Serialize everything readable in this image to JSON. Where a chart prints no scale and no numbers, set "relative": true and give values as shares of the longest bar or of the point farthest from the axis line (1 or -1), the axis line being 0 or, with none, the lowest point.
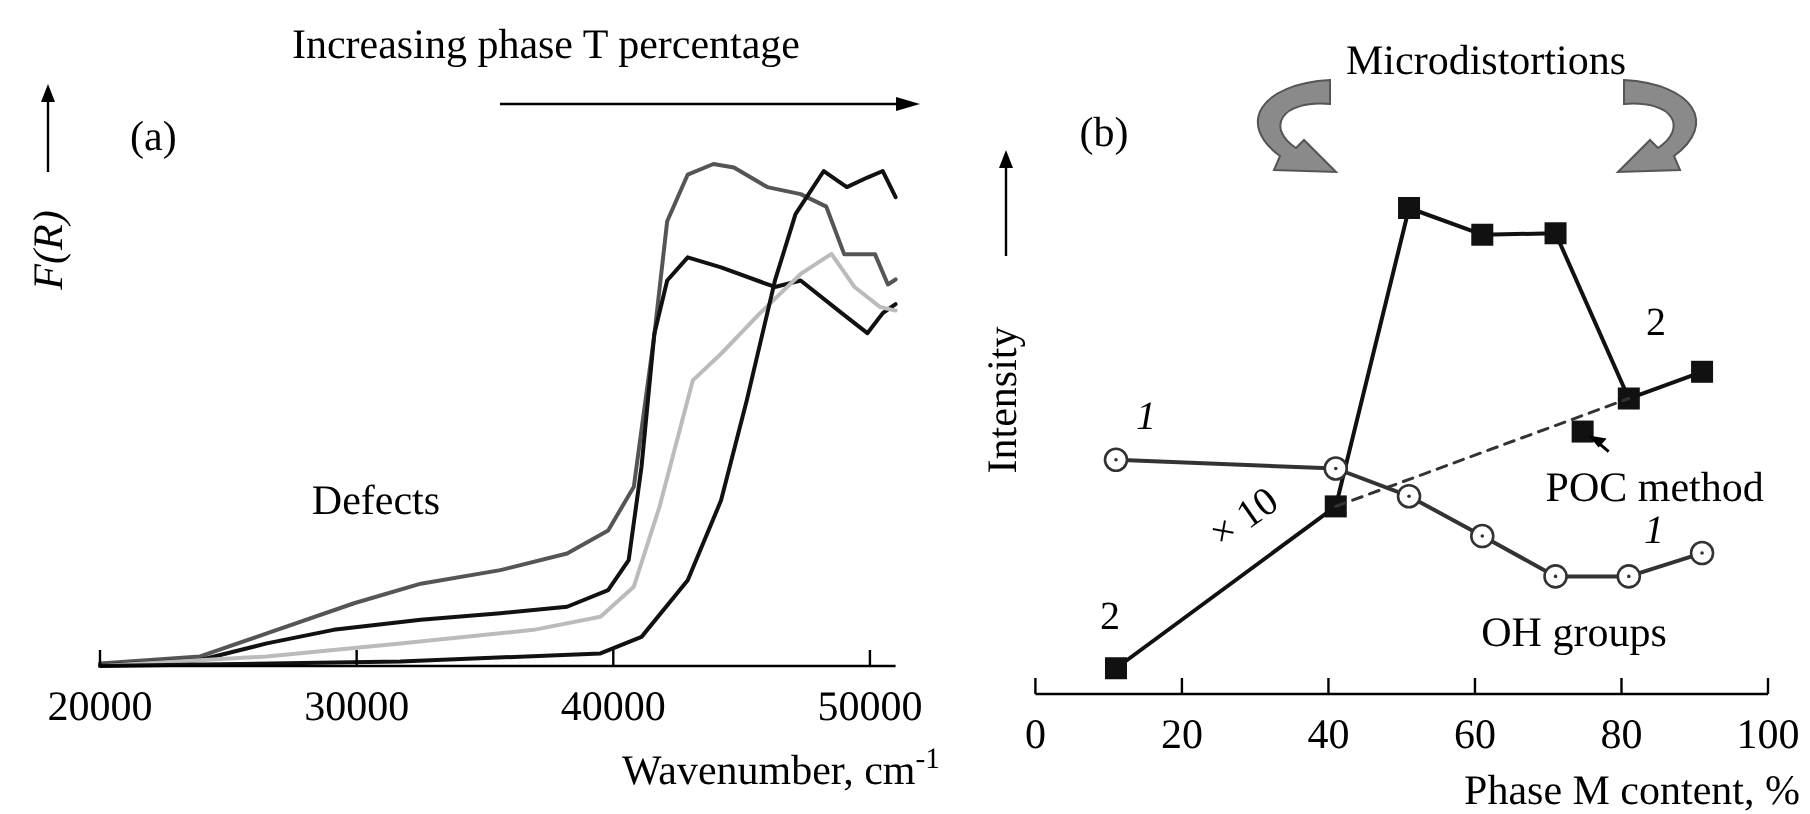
{
  "chart_data": [
    {
      "type": "line",
      "relative": true,
      "xlabel": "Wavenumber, cm$^{-1}$",
      "ylabel": "F(R)",
      "xlim": [
        20000,
        51000
      ],
      "xticks": [
        20000,
        30000,
        40000,
        50000
      ],
      "marker": "none",
      "line_style": "solid",
      "annotations": [
        "Increasing phase T percentage",
        "(a)",
        "Defects"
      ],
      "series": [
        {
          "color": "#555555",
          "x": [
            20000,
            23900,
            26500,
            29900,
            32500,
            35600,
            38200,
            39800,
            40800,
            41600,
            42100,
            42900,
            43900,
            44700,
            46000,
            47300,
            48300,
            49000,
            49600,
            50200,
            50700,
            51000
          ],
          "values": [
            0.005,
            0.019,
            0.065,
            0.125,
            0.164,
            0.191,
            0.224,
            0.27,
            0.357,
            0.66,
            0.886,
            0.979,
            1.0,
            0.993,
            0.954,
            0.94,
            0.915,
            0.82,
            0.82,
            0.82,
            0.76,
            0.77
          ]
        },
        {
          "color": "#111111",
          "x": [
            20000,
            23900,
            26500,
            29100,
            32500,
            35600,
            38200,
            39800,
            40600,
            41100,
            41600,
            42100,
            42900,
            44200,
            46300,
            47300,
            48900,
            49900,
            50500,
            51000
          ],
          "values": [
            0.001,
            0.012,
            0.045,
            0.072,
            0.092,
            0.105,
            0.118,
            0.151,
            0.211,
            0.397,
            0.662,
            0.768,
            0.814,
            0.794,
            0.755,
            0.768,
            0.703,
            0.663,
            0.703,
            0.721
          ]
        },
        {
          "color": "#bbbbbb",
          "x": [
            20000,
            26500,
            31700,
            36900,
            39500,
            40800,
            41800,
            43100,
            44200,
            45700,
            47300,
            48500,
            49400,
            50400,
            51000
          ],
          "values": [
            0,
            0.019,
            0.045,
            0.072,
            0.098,
            0.158,
            0.317,
            0.569,
            0.622,
            0.702,
            0.781,
            0.821,
            0.755,
            0.715,
            0.708
          ]
        },
        {
          "color": "#111111",
          "x": [
            20000,
            31700,
            39500,
            41100,
            42900,
            44200,
            45200,
            46300,
            47100,
            48200,
            49100,
            49900,
            50500,
            51000
          ],
          "values": [
            0,
            0.009,
            0.025,
            0.058,
            0.171,
            0.33,
            0.529,
            0.768,
            0.9,
            0.986,
            0.954,
            0.973,
            0.986,
            0.934
          ]
        }
      ]
    },
    {
      "type": "line",
      "relative": true,
      "xlabel": "Phase M content, %",
      "ylabel": "Intensity",
      "xlim": [
        0,
        100
      ],
      "xticks": [
        0,
        20,
        40,
        60,
        80,
        100
      ],
      "annotations": [
        "Microdistortions",
        "(b)",
        "1",
        "2",
        "2",
        "1",
        "× 10",
        {
          "text": "POC method",
          "x": 74.7,
          "y": 0.54
        },
        "OH groups"
      ],
      "series": [
        {
          "color": "#111111",
          "marker": "square",
          "line_style": "solid",
          "x": [
            11,
            41,
            51,
            61,
            71,
            81,
            91
          ],
          "values": [
            0.053,
            0.386,
            1.0,
            0.945,
            0.948,
            0.608,
            0.663
          ]
        },
        {
          "color": "#333333",
          "marker": "circle",
          "line_style": "solid",
          "x": [
            11,
            41,
            51,
            61,
            71,
            81,
            91
          ],
          "values": [
            0.482,
            0.464,
            0.407,
            0.325,
            0.242,
            0.242,
            0.29
          ]
        },
        {
          "color": "#333333",
          "marker": "none",
          "line_style": "dashed",
          "x": [
            41,
            81
          ],
          "values": [
            0.386,
            0.608
          ]
        },
        {
          "type": "scatter",
          "color": "#111111",
          "marker": "square",
          "x": [
            74.7
          ],
          "values": [
            0.54
          ]
        }
      ]
    }
  ]
}
